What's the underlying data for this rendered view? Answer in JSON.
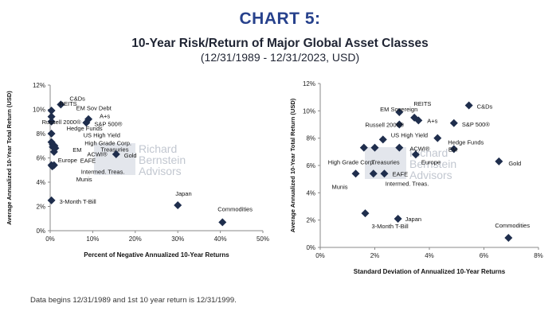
{
  "header": {
    "chart_number": "CHART 5:",
    "title": "10-Year Risk/Return of Major Global Asset Classes",
    "subtitle": "(12/31/1989 - 12/31/2023, USD)"
  },
  "watermark": {
    "logo_letters": "RBA",
    "lines": [
      "Richard",
      "Bernstein",
      "Advisors"
    ]
  },
  "footnote": "Data begins 12/31/1989 and 1st 10 year return is 12/31/1999.",
  "colors": {
    "marker": "#1f2e4d",
    "title_blue": "#27418c",
    "axis": "#8a8a8a"
  },
  "chart_data": [
    {
      "type": "scatter",
      "ylabel": "Average Annualized 10-Year Total Return (USD)",
      "xlabel": "Percent of Negative Annualized 10-Year Returns",
      "xlim": [
        0,
        50
      ],
      "ylim": [
        0,
        12
      ],
      "xticks": [
        "0%",
        "10%",
        "20%",
        "30%",
        "40%",
        "50%"
      ],
      "yticks": [
        "0%",
        "2%",
        "4%",
        "6%",
        "8%",
        "10%",
        "12%"
      ],
      "points": [
        {
          "label": "C&Ds",
          "x": 2.5,
          "y": 10.4
        },
        {
          "label": "REITS",
          "x": 0.3,
          "y": 9.9
        },
        {
          "label": "EM Sov Debt",
          "x": 0.3,
          "y": 9.4
        },
        {
          "label": "A+s",
          "x": 9.0,
          "y": 9.2
        },
        {
          "label": "Russell 2000®",
          "x": 0.3,
          "y": 9.0
        },
        {
          "label": "S&P 500®",
          "x": 8.5,
          "y": 8.9
        },
        {
          "label": "Hedge Funds",
          "x": 0.3,
          "y": 8.0
        },
        {
          "label": "US High Yield",
          "x": 0.3,
          "y": 7.3
        },
        {
          "label": "High Grade Corp.",
          "x": 0.6,
          "y": 7.1
        },
        {
          "label": "Treasuries",
          "x": 1.0,
          "y": 7.0
        },
        {
          "label": "EM",
          "x": 0.6,
          "y": 6.9
        },
        {
          "label": "ACWI®",
          "x": 1.2,
          "y": 6.8
        },
        {
          "label": "Europe",
          "x": 0.9,
          "y": 6.5
        },
        {
          "label": "Gold",
          "x": 15.5,
          "y": 6.3
        },
        {
          "label": "EAFE",
          "x": 0.3,
          "y": 5.4
        },
        {
          "label": "Intermed. Treas.",
          "x": 0.9,
          "y": 5.4
        },
        {
          "label": "Munis",
          "x": 0.5,
          "y": 5.3
        },
        {
          "label": "3-Month T-Bill",
          "x": 0.3,
          "y": 2.5
        },
        {
          "label": "Japan",
          "x": 30.0,
          "y": 2.1
        },
        {
          "label": "Commodities",
          "x": 40.5,
          "y": 0.7
        }
      ]
    },
    {
      "type": "scatter",
      "ylabel": "Average Annualized 10-Year Total Return (USD)",
      "xlabel": "Standard Deviation of  Annualized 10-Year Returns",
      "xlim": [
        0,
        8
      ],
      "ylim": [
        0,
        12
      ],
      "xticks": [
        "0%",
        "2%",
        "4%",
        "6%",
        "8%"
      ],
      "yticks": [
        "0%",
        "2%",
        "4%",
        "6%",
        "8%",
        "10%",
        "12%"
      ],
      "points": [
        {
          "label": "C&Ds",
          "x": 5.45,
          "y": 10.4
        },
        {
          "label": "REITS",
          "x": 2.9,
          "y": 9.9
        },
        {
          "label": "EM Sovereign",
          "x": 3.45,
          "y": 9.5
        },
        {
          "label": "A+s",
          "x": 3.6,
          "y": 9.3
        },
        {
          "label": "S&P 500®",
          "x": 4.9,
          "y": 9.1
        },
        {
          "label": "Russell 2000®",
          "x": 2.9,
          "y": 9.0
        },
        {
          "label": "US High Yield",
          "x": 2.3,
          "y": 7.9
        },
        {
          "label": "Hedge Funds",
          "x": 4.3,
          "y": 8.0
        },
        {
          "label": "High Grade Corp.",
          "x": 1.6,
          "y": 7.3
        },
        {
          "label": "ACWI®",
          "x": 2.9,
          "y": 7.3
        },
        {
          "label": "Treasuries",
          "x": 2.0,
          "y": 7.3
        },
        {
          "label": "EM",
          "x": 4.9,
          "y": 7.2
        },
        {
          "label": "Europe",
          "x": 3.5,
          "y": 6.8
        },
        {
          "label": "Gold",
          "x": 6.55,
          "y": 6.3
        },
        {
          "label": "Munis",
          "x": 1.3,
          "y": 5.4
        },
        {
          "label": "EAFE",
          "x": 2.35,
          "y": 5.4
        },
        {
          "label": "Intermed. Treas.",
          "x": 1.95,
          "y": 5.4
        },
        {
          "label": "3-Month T-Bill",
          "x": 1.65,
          "y": 2.5
        },
        {
          "label": "Japan",
          "x": 2.85,
          "y": 2.1
        },
        {
          "label": "Commodities",
          "x": 6.9,
          "y": 0.7
        }
      ]
    }
  ]
}
